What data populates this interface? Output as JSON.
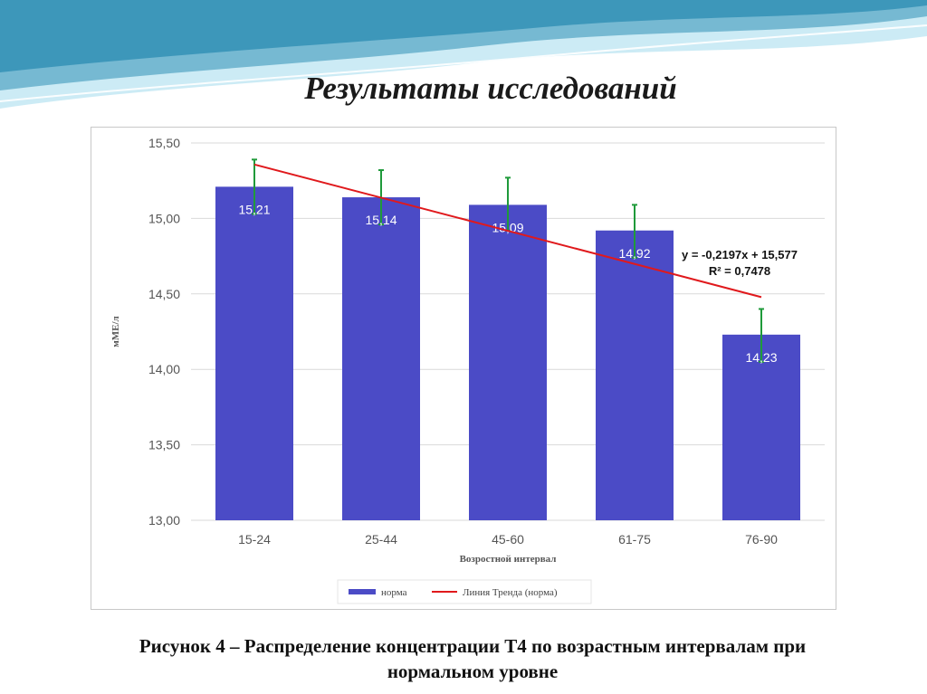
{
  "slide": {
    "title": "Результаты исследований",
    "caption_line1": "Рисунок 4 – Распределение концентрации Т4 по возрастным интервалам при",
    "caption_line2": "нормальном уровне",
    "colors": {
      "wave_dark": "#2f8fb4",
      "wave_light": "#bfe6f3"
    }
  },
  "chart_data": {
    "type": "bar",
    "categories": [
      "15-24",
      "25-44",
      "45-60",
      "61-75",
      "76-90"
    ],
    "values": [
      15.21,
      15.14,
      15.09,
      14.92,
      14.23
    ],
    "value_labels": [
      "15,21",
      "15,14",
      "15,09",
      "14,92",
      "14,23"
    ],
    "error_bars": [
      {
        "low": 15.03,
        "high": 15.39
      },
      {
        "low": 14.96,
        "high": 15.32
      },
      {
        "low": 14.92,
        "high": 15.27
      },
      {
        "low": 14.74,
        "high": 15.09
      },
      {
        "low": 14.05,
        "high": 14.4
      }
    ],
    "trendline": {
      "slope": -0.2197,
      "intercept": 15.577,
      "equation": "y = -0,2197x + 15,577",
      "r2": "R² = 0,7478"
    },
    "ylabel": "мМЕ/л",
    "xlabel": "Возростной интервал",
    "ylim": [
      13.0,
      15.5
    ],
    "yticks": [
      13.0,
      13.5,
      14.0,
      14.5,
      15.0,
      15.5
    ],
    "ytick_labels": [
      "13,00",
      "13,50",
      "14,00",
      "14,50",
      "15,00",
      "15,50"
    ],
    "grid": true,
    "legend": {
      "position": "bottom",
      "bar_label": "норма",
      "line_label": "Линия Тренда (норма)"
    },
    "colors": {
      "bar": "#4b4bc6",
      "trend": "#e0191c",
      "error": "#1f9a3a",
      "grid": "#d9d9d9"
    }
  }
}
